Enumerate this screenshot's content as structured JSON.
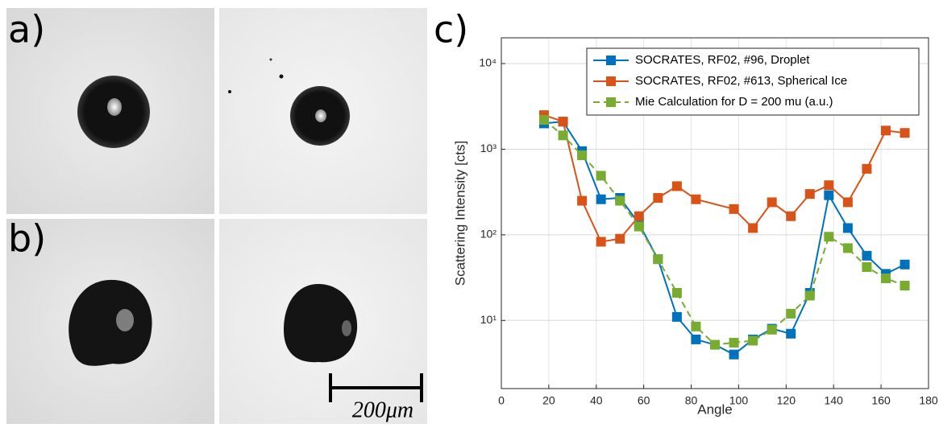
{
  "figure": {
    "panel_labels": [
      "a)",
      "b)",
      "c)"
    ],
    "scale_bar": "200μm"
  },
  "chart_data": {
    "type": "line",
    "xlabel": "Angle",
    "ylabel": "Scattering Intensity [cts]",
    "xlim": [
      0,
      180
    ],
    "xticks": [
      0,
      20,
      40,
      60,
      80,
      100,
      120,
      140,
      160,
      180
    ],
    "ylim": [
      1.6,
      20000
    ],
    "log_y": true,
    "yticks": [
      {
        "value": 10,
        "label": "10¹"
      },
      {
        "value": 100,
        "label": "10²"
      },
      {
        "value": 1000,
        "label": "10³"
      },
      {
        "value": 10000,
        "label": "10⁴"
      }
    ],
    "grid": true,
    "legend": "top right",
    "series": [
      {
        "name": "SOCRATES, RF02, #96, Droplet",
        "color": "#0072bd",
        "dashed": false,
        "x": [
          18,
          26,
          34,
          42,
          50,
          58,
          66,
          74,
          82,
          90,
          98,
          106,
          114,
          122,
          130,
          138,
          146,
          154,
          162,
          170
        ],
        "values": [
          2000,
          2100,
          950,
          260,
          270,
          135,
          52,
          11,
          6,
          5.2,
          4,
          6,
          8,
          7,
          21,
          290,
          120,
          57,
          35,
          45
        ]
      },
      {
        "name": "SOCRATES, RF02, #613, Spherical Ice",
        "color": "#d95319",
        "dashed": false,
        "x": [
          18,
          26,
          34,
          42,
          50,
          58,
          66,
          74,
          82,
          98,
          106,
          114,
          122,
          130,
          138,
          146,
          154,
          162,
          170
        ],
        "values": [
          2500,
          2100,
          250,
          83,
          90,
          165,
          270,
          370,
          260,
          200,
          120,
          240,
          165,
          300,
          380,
          240,
          590,
          1650,
          1550
        ]
      },
      {
        "name": "Mie Calculation for D = 200 mu (a.u.)",
        "color": "#77ac30",
        "dashed": true,
        "x": [
          18,
          26,
          34,
          42,
          50,
          58,
          66,
          74,
          82,
          90,
          98,
          106,
          114,
          122,
          130,
          138,
          146,
          154,
          162,
          170
        ],
        "values": [
          2200,
          1450,
          850,
          490,
          250,
          125,
          52,
          21,
          8.5,
          5.2,
          5.5,
          5.8,
          7.8,
          12,
          19.5,
          95,
          70,
          42,
          31,
          25.5
        ]
      }
    ]
  }
}
